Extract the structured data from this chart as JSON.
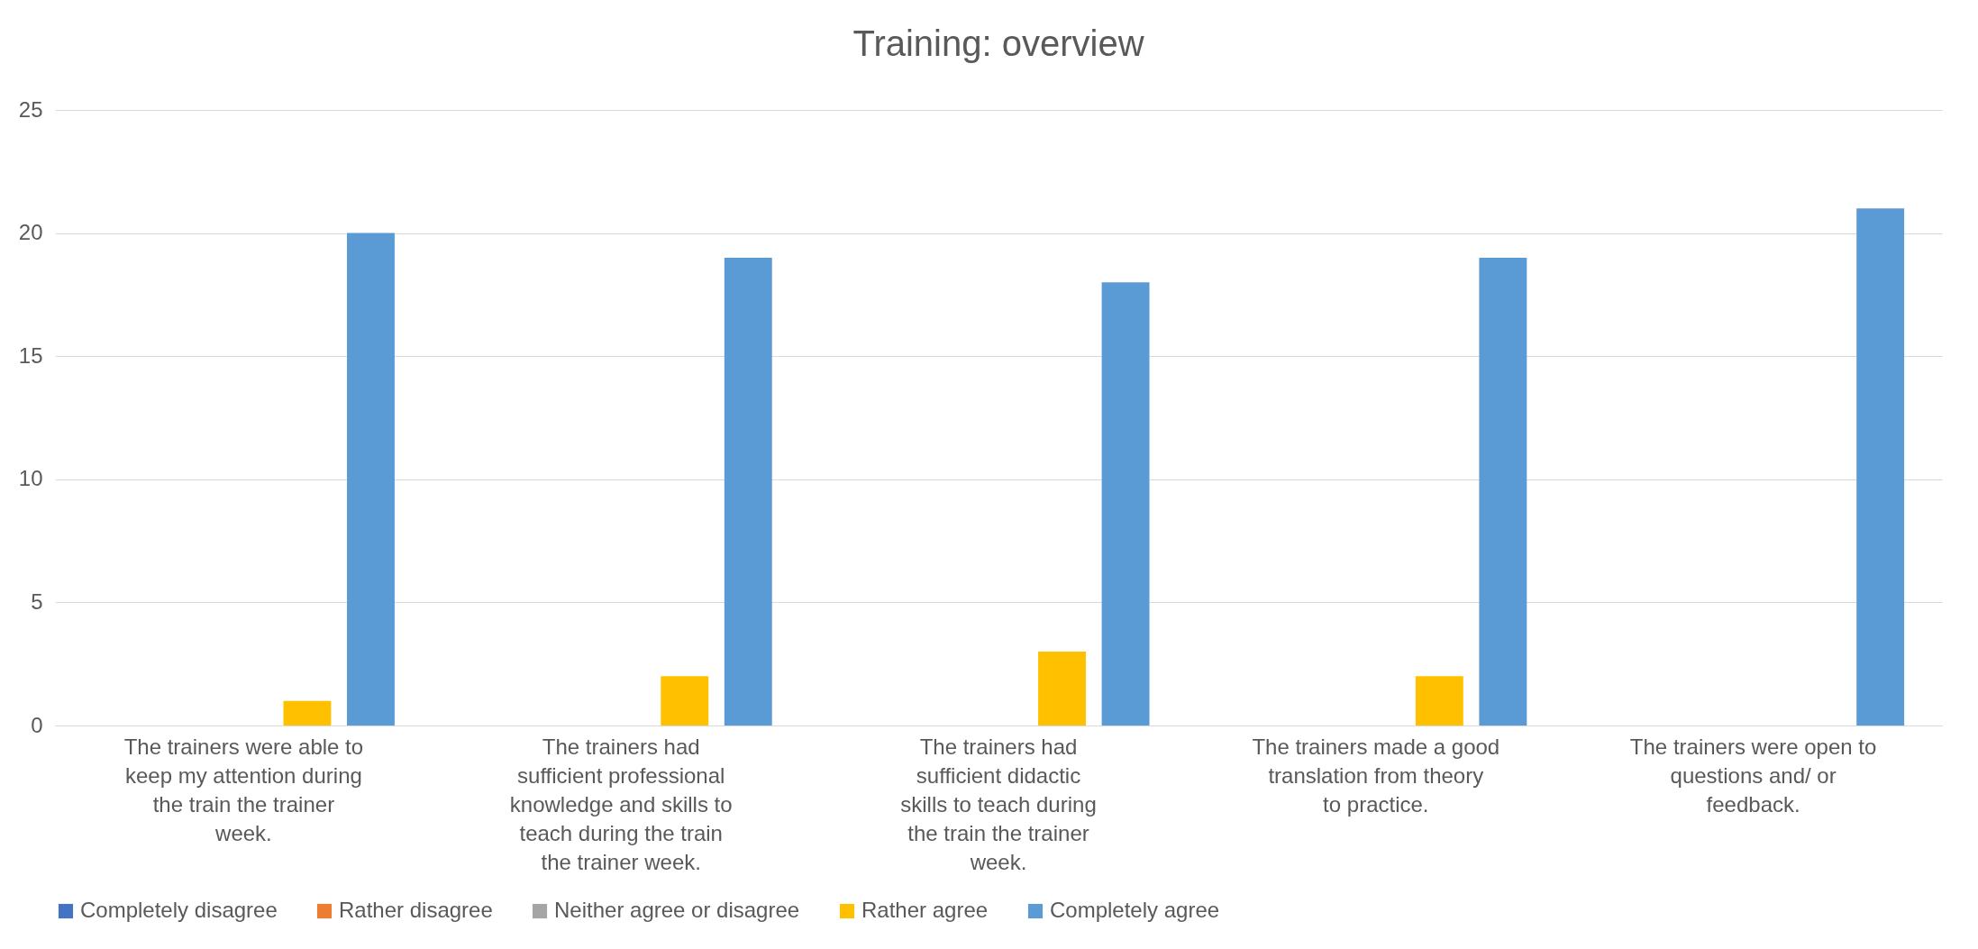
{
  "chart_data": {
    "type": "bar",
    "title": "Training: overview",
    "categories": [
      "The trainers were able to keep my attention during the train the trainer week.",
      "The trainers had sufficient professional knowledge and skills to teach during the train the trainer week.",
      "The trainers had sufficient didactic skills to teach during the train the trainer week.",
      "The trainers made a good translation from theory to practice.",
      "The trainers were open to questions and/ or feedback."
    ],
    "series": [
      {
        "name": "Completely disagree",
        "color": "#4472c4",
        "values": [
          0,
          0,
          0,
          0,
          0
        ]
      },
      {
        "name": "Rather disagree",
        "color": "#ed7d31",
        "values": [
          0,
          0,
          0,
          0,
          0
        ]
      },
      {
        "name": "Neither agree or disagree",
        "color": "#a5a5a5",
        "values": [
          0,
          0,
          0,
          0,
          0
        ]
      },
      {
        "name": "Rather agree",
        "color": "#ffc000",
        "values": [
          1,
          2,
          3,
          2,
          0
        ]
      },
      {
        "name": "Completely agree",
        "color": "#5b9bd5",
        "values": [
          20,
          19,
          18,
          19,
          21
        ]
      }
    ],
    "ylim": [
      0,
      25
    ],
    "yticks": [
      0,
      5,
      10,
      15,
      20,
      25
    ],
    "grid": "y",
    "legend": "bottom"
  }
}
